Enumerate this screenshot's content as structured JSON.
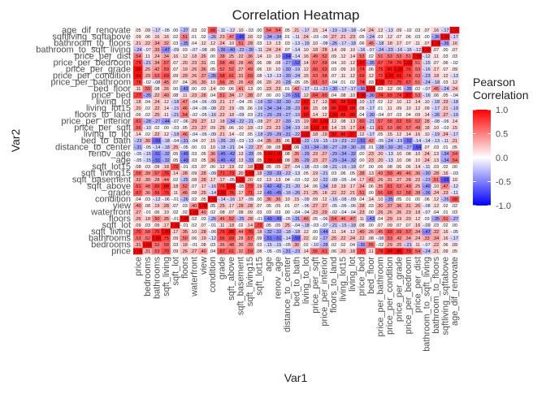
{
  "chart_data": {
    "type": "heatmap",
    "title": "Correlation Heatmap",
    "xlabel": "Var1",
    "ylabel": "Var2",
    "variables": [
      "price",
      "bedrooms",
      "bathrooms",
      "sqft_living",
      "sqft_lot",
      "floors",
      "waterfront",
      "view",
      "condition",
      "grade",
      "sqft_above",
      "sqft_basement",
      "sqft_living15",
      "sqft_lot15",
      "age",
      "renov_age",
      "distance_to_center",
      "bed_to_bath",
      "living_to_lot",
      "price_per_sqft",
      "price_per_interior",
      "floors_to_land",
      "living_lot15",
      "living_lot",
      "price_bed",
      "bed_floor",
      "price_per_bathroom",
      "price_per_condition",
      "price_per_grade",
      "price_per_bedroom",
      "price_per_dist",
      "bathroom_to_sqft_living",
      "bathroom_to_floors",
      "sqftliving_sqftabove",
      "age_dif_renovate"
    ],
    "value_range": [
      -1,
      1
    ],
    "legend": {
      "title": "Pearson\nCorrelation",
      "ticks": [
        1.0,
        0.5,
        0.0,
        -0.5,
        -1.0
      ],
      "tick_labels": [
        "1.0",
        "0.5",
        "0.0",
        "-0.5",
        "-1.0"
      ],
      "placement": "right"
    },
    "colors": {
      "low": "#0000ff",
      "mid": "#ffffff",
      "high": "#ff0000"
    },
    "grid": false,
    "values": [
      [
        1,
        0.31,
        0.53,
        0.7,
        0.09,
        0.26,
        0.27,
        0.4,
        0.04,
        0.67,
        0.61,
        0.32,
        0.59,
        0.08,
        -0.05,
        -0.05,
        -0.31,
        -0.23,
        0.14,
        0.56,
        0.61,
        0.06,
        0.2,
        0.18,
        0.77,
        0.11,
        0.78,
        0.94,
        0.96,
        0.79,
        0.54,
        -0.24,
        0.21,
        0.09,
        0.05
      ],
      [
        0.31,
        1,
        0.52,
        0.58,
        0.03,
        0.18,
        -0.01,
        0.08,
        0.03,
        0.36,
        0.48,
        0.3,
        0.39,
        0.03,
        -0.15,
        -0.15,
        -0.05,
        0.3,
        0.02,
        -0.1,
        -0.28,
        0.02,
        0.02,
        0.04,
        -0.35,
        0.55,
        -0.02,
        0.29,
        0.25,
        -0.21,
        0.11,
        -0.07,
        0.22,
        0.06,
        0.09
      ],
      [
        0.53,
        0.52,
        1,
        0.75,
        0.09,
        0.5,
        0.06,
        0.19,
        -0.12,
        0.66,
        0.69,
        0.28,
        0.57,
        0.09,
        -0.51,
        -0.51,
        -0.14,
        -0.59,
        0.22,
        0.02,
        -0.27,
        0.25,
        0.22,
        0.24,
        0.22,
        0.08,
        -0.08,
        0.53,
        0.42,
        0.34,
        0.24,
        0.33,
        0.34,
        0.16,
        -0.17
      ],
      [
        0.7,
        0.58,
        0.75,
        1,
        0.17,
        0.35,
        0.1,
        0.28,
        -0.06,
        0.76,
        0.88,
        0.44,
        0.76,
        0.18,
        -0.32,
        -0.32,
        -0.18,
        -0.18,
        0.12,
        0.0,
        -0.44,
        0.11,
        0.14,
        0.12,
        0.4,
        0.26,
        0.45,
        0.69,
        0.59,
        0.57,
        0.34,
        -0.47,
        0.32,
        0.16,
        -0.05
      ],
      [
        0.09,
        0.03,
        0.09,
        0.17,
        1,
        -0.01,
        0.02,
        0.07,
        -0.01,
        0.11,
        0.18,
        0.02,
        0.14,
        0.72,
        0.05,
        0.05,
        0.25,
        -0.04,
        -0.18,
        -0.03,
        -0.07,
        -0.21,
        -0.15,
        -0.18,
        0.08,
        0.0,
        0.07,
        0.09,
        0.07,
        0.07,
        0.16,
        -0.09,
        0.03,
        0.02,
        0.0
      ],
      [
        0.26,
        0.18,
        0.5,
        0.35,
        -0.01,
        1,
        0.02,
        0.03,
        -0.26,
        0.46,
        0.52,
        -0.25,
        0.28,
        -0.01,
        -0.49,
        -0.49,
        -0.05,
        -0.31,
        0.46,
        0.05,
        -0.06,
        0.54,
        0.46,
        0.47,
        0.11,
        -0.43,
        0.04,
        0.29,
        0.19,
        0.2,
        0.12,
        0.03,
        -0.35,
        0.51,
        -0.27
      ],
      [
        0.27,
        -0.01,
        0.06,
        0.1,
        0.02,
        0.02,
        1,
        0.4,
        0.02,
        0.08,
        0.07,
        0.08,
        0.09,
        0.03,
        0.03,
        0.03,
        0.0,
        -0.04,
        -0.04,
        0.23,
        0.29,
        -0.02,
        -0.04,
        -0.04,
        0.23,
        0.0,
        0.26,
        0.26,
        0.26,
        0.23,
        0.18,
        -0.07,
        0.04,
        0.01,
        0.03
      ],
      [
        0.4,
        0.08,
        0.19,
        0.28,
        0.07,
        0.03,
        0.4,
        1,
        0.05,
        0.25,
        0.17,
        0.28,
        0.28,
        0.07,
        0.05,
        0.05,
        0.01,
        0.07,
        -0.06,
        0.27,
        0.27,
        -0.05,
        -0.06,
        -0.06,
        0.28,
        0.03,
        0.3,
        0.37,
        0.36,
        0.31,
        0.26,
        -0.08,
        0.12,
        0.02,
        0.02
      ],
      [
        0.04,
        0.03,
        -0.12,
        -0.06,
        -0.01,
        -0.26,
        0.02,
        0.05,
        1,
        -0.14,
        -0.16,
        0.17,
        -0.09,
        -0.0,
        0.36,
        0.36,
        0.1,
        0.15,
        -0.09,
        0.09,
        0.12,
        -0.16,
        -0.08,
        -0.09,
        0.04,
        0.14,
        0.1,
        -0.35,
        0.05,
        0.01,
        0.0,
        0.06,
        0.12,
        -0.26,
        0.68
      ],
      [
        0.67,
        0.36,
        0.66,
        0.76,
        0.11,
        0.46,
        0.08,
        0.25,
        -0.14,
        1,
        0.76,
        0.17,
        0.71,
        0.12,
        -0.45,
        -0.45,
        -0.18,
        -0.26,
        0.21,
        0.25,
        0.18,
        0.22,
        0.22,
        0.21,
        0.51,
        0.0,
        0.56,
        0.68,
        0.52,
        0.58,
        0.38,
        -0.36,
        0.24,
        0.23,
        -0.11
      ],
      [
        0.61,
        0.48,
        0.69,
        0.88,
        0.18,
        0.52,
        0.07,
        0.17,
        -0.16,
        0.76,
        1,
        -0.05,
        0.73,
        0.19,
        -0.42,
        -0.42,
        -0.21,
        -0.2,
        0.14,
        0.06,
        -0.34,
        0.18,
        0.19,
        0.17,
        0.34,
        0.06,
        0.35,
        0.61,
        0.52,
        0.49,
        0.25,
        -0.4,
        0.1,
        0.47,
        -0.12
      ],
      [
        0.32,
        0.3,
        0.28,
        0.44,
        0.02,
        -0.25,
        0.08,
        0.28,
        0.17,
        0.17,
        -0.05,
        1,
        0.2,
        0.02,
        0.13,
        0.13,
        0.04,
        -0.03,
        -0.02,
        0.1,
        -0.22,
        -0.09,
        -0.05,
        -0.04,
        0.17,
        0.41,
        0.26,
        0.31,
        0.27,
        0.28,
        0.22,
        -0.23,
        0.51,
        -0.65,
        0.1
      ],
      [
        0.59,
        0.39,
        0.57,
        0.76,
        0.14,
        0.28,
        0.09,
        0.28,
        -0.09,
        0.71,
        0.73,
        0.2,
        1,
        0.18,
        -0.33,
        -0.33,
        -0.22,
        -0.13,
        0.05,
        0.19,
        -0.21,
        0.03,
        0.06,
        0.05,
        0.38,
        0.13,
        0.43,
        0.59,
        0.49,
        0.46,
        0.36,
        -0.3,
        0.28,
        0.16,
        -0.03
      ],
      [
        0.08,
        0.03,
        0.09,
        0.18,
        0.72,
        -0.01,
        0.03,
        0.07,
        -0.0,
        0.12,
        0.19,
        0.02,
        0.18,
        1,
        0.05,
        0.05,
        0.27,
        -0.04,
        -0.18,
        -0.03,
        -0.08,
        -0.21,
        -0.16,
        -0.18,
        0.07,
        0.0,
        0.06,
        0.08,
        0.06,
        0.06,
        0.14,
        -0.11,
        0.03,
        0.02,
        0.0
      ],
      [
        -0.05,
        -0.15,
        -0.51,
        -0.32,
        0.05,
        -0.49,
        0.03,
        0.05,
        0.36,
        -0.45,
        -0.42,
        0.13,
        -0.33,
        0.05,
        1,
        1.0,
        0.08,
        0.35,
        -0.29,
        0.23,
        0.27,
        -0.29,
        -0.34,
        -0.32,
        0.0,
        0.23,
        0.2,
        -0.13,
        0.1,
        0.08,
        0.1,
        0.24,
        0.13,
        -0.34,
        0.54
      ],
      [
        -0.05,
        -0.15,
        -0.51,
        -0.32,
        0.05,
        -0.49,
        0.03,
        0.05,
        0.36,
        -0.45,
        -0.42,
        0.13,
        -0.33,
        0.05,
        1.0,
        1,
        0.08,
        0.35,
        -0.29,
        0.23,
        0.27,
        -0.29,
        -0.34,
        -0.32,
        0.0,
        0.23,
        0.2,
        -0.13,
        0.1,
        0.08,
        0.1,
        0.24,
        0.13,
        -0.34,
        0.54
      ],
      [
        -0.31,
        -0.05,
        -0.14,
        -0.18,
        0.25,
        -0.05,
        0.0,
        0.01,
        0.1,
        -0.18,
        -0.21,
        0.04,
        -0.22,
        0.27,
        0.08,
        0.08,
        1,
        0.06,
        -0.31,
        -0.34,
        -0.3,
        -0.27,
        -0.28,
        -0.3,
        -0.26,
        0.01,
        -0.28,
        -0.3,
        -0.3,
        -0.27,
        -0.64,
        0.07,
        0.03,
        0.01,
        0.05
      ],
      [
        -0.23,
        0.3,
        -0.59,
        -0.18,
        -0.04,
        -0.31,
        -0.04,
        0.07,
        0.15,
        -0.26,
        -0.2,
        -0.03,
        -0.13,
        -0.04,
        0.35,
        0.35,
        0.06,
        1,
        -0.22,
        -0.19,
        -0.15,
        -0.19,
        -0.23,
        -0.22,
        -0.51,
        0.42,
        -0.05,
        -0.24,
        -0.19,
        -0.52,
        -0.14,
        -0.14,
        -0.13,
        -0.11,
        0.21
      ],
      [
        0.14,
        0.02,
        0.22,
        0.12,
        -0.18,
        0.46,
        -0.04,
        -0.06,
        -0.09,
        0.21,
        0.14,
        -0.02,
        0.05,
        -0.18,
        -0.29,
        -0.29,
        -0.31,
        -0.22,
        1,
        0.18,
        0.19,
        0.92,
        0.86,
        0.97,
        0.12,
        -0.17,
        0.05,
        0.15,
        0.12,
        0.14,
        0.16,
        0.1,
        -0.19,
        0.24,
        -0.17
      ],
      [
        0.56,
        -0.1,
        0.02,
        0.0,
        -0.03,
        0.05,
        0.23,
        0.27,
        0.09,
        0.25,
        0.06,
        0.1,
        0.19,
        -0.03,
        0.23,
        0.23,
        -0.34,
        -0.19,
        0.18,
        1,
        0.89,
        0.14,
        0.15,
        0.17,
        0.64,
        -0.11,
        0.61,
        0.53,
        0.6,
        0.57,
        0.49,
        0.18,
        0.1,
        -0.03,
        0.15
      ],
      [
        0.61,
        -0.28,
        -0.27,
        -0.44,
        -0.07,
        -0.06,
        0.29,
        0.27,
        0.12,
        0.18,
        -0.34,
        -0.22,
        -0.21,
        -0.08,
        0.27,
        0.27,
        -0.3,
        -0.15,
        0.19,
        0.89,
        1,
        0.12,
        0.08,
        0.13,
        0.6,
        -0.21,
        0.57,
        0.58,
        0.63,
        0.59,
        0.52,
        0.28,
        -0.08,
        -0.06,
        0.14
      ],
      [
        0.06,
        0.02,
        0.25,
        0.11,
        -0.21,
        0.54,
        -0.02,
        -0.05,
        -0.16,
        0.22,
        0.18,
        -0.09,
        0.03,
        -0.21,
        -0.29,
        -0.29,
        -0.27,
        -0.19,
        0.92,
        0.14,
        0.12,
        1,
        0.86,
        0.9,
        0.04,
        -0.3,
        -0.04,
        0.07,
        0.03,
        0.04,
        0.09,
        0.14,
        -0.26,
        0.27,
        -0.19
      ],
      [
        0.2,
        0.02,
        0.22,
        0.14,
        -0.15,
        0.46,
        -0.04,
        -0.06,
        -0.08,
        0.22,
        0.19,
        -0.05,
        0.06,
        -0.16,
        -0.34,
        -0.34,
        -0.28,
        -0.23,
        0.86,
        0.15,
        0.08,
        0.86,
        1,
        0.88,
        0.08,
        -0.17,
        0.01,
        0.11,
        0.09,
        0.1,
        0.12,
        0.09,
        -0.17,
        0.21,
        -0.19
      ],
      [
        0.18,
        0.04,
        0.24,
        0.12,
        -0.18,
        0.47,
        -0.04,
        -0.06,
        -0.09,
        0.21,
        0.17,
        -0.04,
        0.05,
        -0.18,
        -0.32,
        -0.32,
        -0.3,
        -0.22,
        0.97,
        0.17,
        0.13,
        0.9,
        0.88,
        1,
        0.1,
        -0.17,
        0.02,
        0.12,
        0.1,
        0.12,
        0.14,
        0.1,
        -0.18,
        0.23,
        -0.18
      ],
      [
        0.77,
        -0.35,
        0.22,
        0.4,
        0.08,
        0.11,
        0.23,
        0.28,
        0.04,
        0.51,
        0.34,
        0.17,
        0.38,
        0.07,
        0.0,
        0.0,
        -0.26,
        -0.51,
        0.12,
        0.64,
        0.6,
        0.04,
        0.08,
        0.1,
        1,
        -0.36,
        0.74,
        0.69,
        0.74,
        0.97,
        0.53,
        -0.16,
        0.06,
        0.05,
        -0.04
      ],
      [
        0.11,
        0.55,
        0.08,
        0.26,
        0.0,
        -0.43,
        0.0,
        0.03,
        0.14,
        0.0,
        0.06,
        0.41,
        0.13,
        0.0,
        0.23,
        0.23,
        0.01,
        0.42,
        -0.17,
        -0.11,
        -0.21,
        -0.3,
        -0.17,
        -0.17,
        -0.36,
        1,
        0.03,
        0.12,
        0.06,
        -0.35,
        0.02,
        -0.07,
        0.45,
        -0.24,
        0.24
      ],
      [
        0.78,
        -0.02,
        -0.08,
        0.45,
        0.07,
        0.04,
        0.26,
        0.3,
        0.1,
        0.56,
        0.35,
        0.26,
        0.43,
        0.06,
        0.2,
        0.2,
        -0.28,
        -0.05,
        0.05,
        0.61,
        0.57,
        -0.04,
        0.01,
        0.02,
        0.74,
        0.03,
        1,
        0.72,
        0.75,
        0.67,
        0.51,
        -0.24,
        -0.18,
        0.03,
        0.12
      ],
      [
        0.94,
        0.29,
        0.53,
        0.69,
        0.09,
        0.29,
        0.26,
        0.37,
        -0.35,
        0.68,
        0.61,
        0.31,
        0.59,
        0.08,
        -0.13,
        -0.13,
        -0.3,
        -0.24,
        0.15,
        0.53,
        0.58,
        0.07,
        0.11,
        0.12,
        0.69,
        0.12,
        0.72,
        1,
        0.91,
        0.74,
        0.53,
        -0.23,
        0.18,
        0.12,
        -0.13
      ],
      [
        0.96,
        0.25,
        0.42,
        0.59,
        0.07,
        0.19,
        0.26,
        0.36,
        0.05,
        0.52,
        0.52,
        0.27,
        0.49,
        0.06,
        0.1,
        0.1,
        -0.3,
        -0.19,
        0.12,
        0.6,
        0.63,
        0.03,
        0.09,
        0.1,
        0.74,
        0.06,
        0.75,
        0.91,
        1,
        0.76,
        0.53,
        -0.16,
        0.17,
        0.07,
        0.09
      ],
      [
        0.79,
        -0.21,
        0.34,
        0.57,
        0.07,
        0.2,
        0.23,
        0.31,
        0.01,
        0.58,
        0.49,
        0.28,
        0.46,
        0.06,
        0.08,
        0.08,
        -0.27,
        -0.52,
        0.14,
        0.57,
        0.59,
        0.04,
        0.1,
        0.12,
        0.97,
        -0.35,
        0.67,
        0.74,
        0.76,
        1,
        0.51,
        -0.15,
        0.07,
        0.06,
        -0.02
      ],
      [
        0.54,
        0.11,
        0.24,
        0.34,
        0.16,
        0.12,
        0.18,
        0.26,
        0.0,
        0.38,
        0.25,
        0.22,
        0.36,
        0.14,
        0.1,
        0.1,
        -0.64,
        -0.14,
        0.16,
        0.49,
        0.52,
        0.09,
        0.12,
        0.14,
        0.53,
        0.02,
        0.51,
        0.53,
        0.53,
        0.51,
        1,
        -0.12,
        0.11,
        0.03,
        0.03
      ],
      [
        -0.24,
        -0.07,
        0.33,
        -0.47,
        -0.09,
        0.03,
        -0.07,
        -0.08,
        0.06,
        -0.36,
        -0.4,
        -0.23,
        -0.3,
        -0.11,
        0.24,
        0.24,
        0.07,
        -0.14,
        0.1,
        0.18,
        0.28,
        0.14,
        0.09,
        0.1,
        -0.16,
        -0.07,
        -0.24,
        -0.23,
        -0.16,
        -0.15,
        -0.12,
        1,
        0.07,
        0.0,
        0.07
      ],
      [
        0.21,
        0.22,
        0.34,
        0.32,
        0.03,
        -0.35,
        0.04,
        0.12,
        0.12,
        0.24,
        0.1,
        0.51,
        0.28,
        0.03,
        0.13,
        0.13,
        0.03,
        -0.13,
        -0.19,
        0.1,
        -0.08,
        -0.26,
        -0.17,
        -0.18,
        0.06,
        0.45,
        -0.18,
        0.18,
        0.17,
        0.07,
        0.11,
        0.07,
        1,
        -0.36,
        0.16
      ],
      [
        0.09,
        0.06,
        0.16,
        0.16,
        0.02,
        0.51,
        0.01,
        0.02,
        -0.26,
        0.23,
        0.47,
        -0.65,
        0.16,
        0.02,
        -0.34,
        -0.34,
        0.01,
        -0.11,
        0.24,
        -0.03,
        -0.06,
        0.27,
        0.21,
        0.23,
        0.05,
        -0.24,
        0.03,
        0.12,
        0.07,
        0.06,
        0.03,
        0.0,
        -0.36,
        1,
        -0.17
      ],
      [
        0.05,
        0.09,
        -0.17,
        -0.05,
        0.0,
        -0.27,
        0.03,
        0.02,
        0.68,
        -0.11,
        -0.12,
        0.1,
        -0.03,
        0.0,
        0.54,
        0.54,
        0.05,
        0.21,
        -0.17,
        0.15,
        0.14,
        -0.19,
        -0.19,
        -0.18,
        -0.04,
        0.24,
        0.12,
        -0.13,
        0.09,
        -0.02,
        0.03,
        0.07,
        0.16,
        -0.17,
        1
      ]
    ]
  }
}
